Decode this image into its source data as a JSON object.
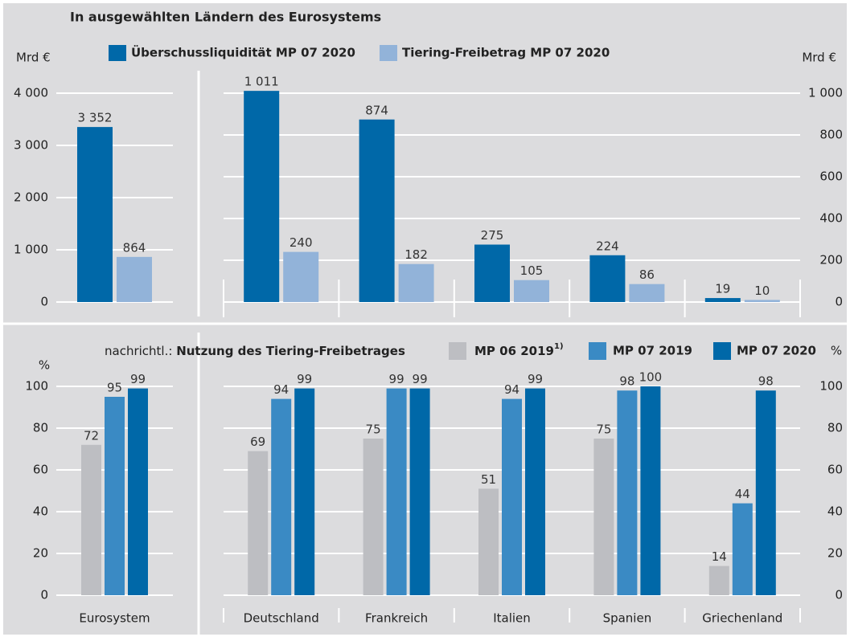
{
  "chart_data": [
    {
      "type": "bar",
      "title": "In ausgewählten Ländern des Eurosystems",
      "y_label": "Mrd €",
      "ylim": [
        0,
        4000
      ],
      "yticks": [
        0,
        {
          "value": 1000,
          "label": "1 000"
        },
        {
          "value": 2000,
          "label": "2 000"
        },
        {
          "value": 3000,
          "label": "3 000"
        },
        {
          "value": 4000,
          "label": "4 000"
        }
      ],
      "grid": true,
      "series": [
        {
          "name": "Überschussliquidität MP 07 2020",
          "color": "#0068a8",
          "values": [
            3352
          ],
          "value_labels": [
            "3 352"
          ]
        },
        {
          "name": "Tiering-Freibetrag MP 07 2020",
          "color": "#92b3d9",
          "values": [
            864
          ]
        }
      ]
    },
    {
      "type": "bar",
      "y_label": "Mrd €",
      "ylim": [
        0,
        1000
      ],
      "yticks": [
        0,
        200,
        400,
        600,
        800,
        {
          "value": 1000,
          "label": "1 000"
        }
      ],
      "grid": true,
      "series": [
        {
          "color": "#0068a8",
          "values": [
            1011,
            874,
            275,
            224,
            19
          ],
          "value_labels": [
            "1 011",
            "874",
            "275",
            "224",
            "19"
          ]
        },
        {
          "color": "#92b3d9",
          "values": [
            240,
            182,
            105,
            86,
            10
          ]
        }
      ]
    },
    {
      "type": "bar",
      "note": "nachrichtl.:",
      "title": "Nutzung des Tiering-Freibetrages",
      "y_label": "%",
      "ylim": [
        0,
        100
      ],
      "yticks": [
        0,
        20,
        40,
        60,
        80,
        100
      ],
      "grid": true,
      "categories": [
        "Eurosystem"
      ],
      "series": [
        {
          "name": "MP 06 2019",
          "name_note": "1)",
          "color": "#bdbec2",
          "values": [
            72
          ]
        },
        {
          "name": "MP 07 2019",
          "color": "#3a8ac4",
          "values": [
            95
          ]
        },
        {
          "name": "MP 07 2020",
          "color": "#0068a8",
          "values": [
            99
          ]
        }
      ]
    },
    {
      "type": "bar",
      "y_label": "%",
      "ylim": [
        0,
        100
      ],
      "yticks": [
        0,
        20,
        40,
        60,
        80,
        100
      ],
      "grid": true,
      "categories": [
        "Deutschland",
        "Frankreich",
        "Italien",
        "Spanien",
        "Griechenland"
      ],
      "series": [
        {
          "color": "#bdbec2",
          "values": [
            69,
            75,
            51,
            75,
            14
          ]
        },
        {
          "color": "#3a8ac4",
          "values": [
            94,
            99,
            94,
            98,
            44
          ]
        },
        {
          "color": "#0068a8",
          "values": [
            99,
            99,
            99,
            100,
            98
          ]
        }
      ]
    }
  ]
}
